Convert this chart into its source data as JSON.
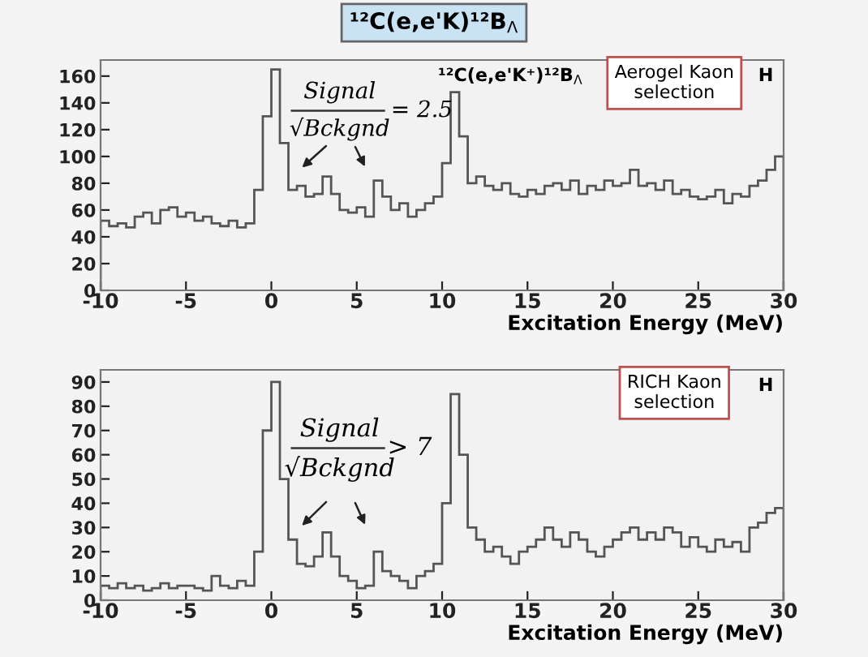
{
  "chart_data": [
    {
      "type": "histogram",
      "title": "¹²C(e,e'K)¹²B$_{Λ}$",
      "xlabel": "Excitation Energy (MeV)",
      "color": "#555555",
      "bins": [
        -10,
        -9.5,
        -9,
        -8.5,
        -8,
        -7.5,
        -7,
        -6.5,
        -6,
        -5.5,
        -5,
        -4.5,
        -4,
        -3.5,
        -3,
        -2.5,
        -2,
        -1.5,
        -1,
        -0.5,
        0,
        0.5,
        1,
        1.5,
        2,
        2.5,
        3,
        3.5,
        4,
        4.5,
        5,
        5.5,
        6,
        6.5,
        7,
        7.5,
        8,
        8.5,
        9,
        9.5,
        10,
        10.5,
        11,
        11.5,
        12,
        12.5,
        13,
        13.5,
        14,
        14.5,
        15,
        15.5,
        16,
        16.5,
        17,
        17.5,
        18,
        18.5,
        19,
        19.5,
        20,
        20.5,
        21,
        21.5,
        22,
        22.5,
        23,
        23.5,
        24,
        24.5,
        25,
        25.5,
        26,
        26.5,
        27,
        27.5,
        28,
        28.5,
        29,
        29.5,
        30
      ],
      "values": [
        52,
        48,
        50,
        47,
        55,
        58,
        50,
        60,
        62,
        55,
        58,
        52,
        55,
        50,
        48,
        52,
        47,
        50,
        75,
        130,
        165,
        110,
        75,
        78,
        70,
        72,
        85,
        72,
        60,
        58,
        62,
        55,
        82,
        70,
        60,
        65,
        55,
        60,
        65,
        70,
        95,
        148,
        115,
        80,
        85,
        78,
        75,
        80,
        72,
        70,
        75,
        72,
        78,
        80,
        75,
        82,
        72,
        78,
        75,
        82,
        78,
        80,
        90,
        78,
        80,
        75,
        82,
        72,
        75,
        70,
        68,
        70,
        75,
        65,
        72,
        70,
        78,
        82,
        90,
        100
      ],
      "xlim": [
        -10,
        30
      ],
      "xticks": [
        -10,
        -5,
        0,
        5,
        10,
        15,
        20,
        25,
        30
      ],
      "ylim": [
        0,
        172
      ],
      "yticks": [
        0,
        20,
        40,
        60,
        80,
        100,
        120,
        140,
        160
      ],
      "grid": false,
      "legend": false,
      "annotations": [
        "¹²C(e,e'K⁺)¹²B$_{Λ}$",
        "Signal",
        "√Bckgnd",
        "= 2.5",
        "Aerogel Kaon\nselection",
        "H"
      ]
    },
    {
      "type": "histogram",
      "xlabel": "Excitation Energy (MeV)",
      "color": "#555555",
      "bins": [
        -10,
        -9.5,
        -9,
        -8.5,
        -8,
        -7.5,
        -7,
        -6.5,
        -6,
        -5.5,
        -5,
        -4.5,
        -4,
        -3.5,
        -3,
        -2.5,
        -2,
        -1.5,
        -1,
        -0.5,
        0,
        0.5,
        1,
        1.5,
        2,
        2.5,
        3,
        3.5,
        4,
        4.5,
        5,
        5.5,
        6,
        6.5,
        7,
        7.5,
        8,
        8.5,
        9,
        9.5,
        10,
        10.5,
        11,
        11.5,
        12,
        12.5,
        13,
        13.5,
        14,
        14.5,
        15,
        15.5,
        16,
        16.5,
        17,
        17.5,
        18,
        18.5,
        19,
        19.5,
        20,
        20.5,
        21,
        21.5,
        22,
        22.5,
        23,
        23.5,
        24,
        24.5,
        25,
        25.5,
        26,
        26.5,
        27,
        27.5,
        28,
        28.5,
        29,
        29.5,
        30
      ],
      "values": [
        6,
        5,
        7,
        5,
        6,
        4,
        5,
        7,
        5,
        6,
        6,
        5,
        4,
        10,
        6,
        5,
        8,
        6,
        20,
        70,
        90,
        50,
        25,
        15,
        14,
        18,
        28,
        18,
        10,
        8,
        5,
        6,
        20,
        12,
        10,
        8,
        5,
        10,
        12,
        15,
        40,
        85,
        60,
        30,
        25,
        20,
        22,
        18,
        15,
        20,
        22,
        25,
        30,
        25,
        22,
        28,
        25,
        20,
        18,
        22,
        25,
        28,
        30,
        25,
        28,
        25,
        30,
        28,
        22,
        26,
        22,
        20,
        25,
        22,
        24,
        20,
        30,
        32,
        36,
        38
      ],
      "xlim": [
        -10,
        30
      ],
      "xticks": [
        -10,
        -5,
        0,
        5,
        10,
        15,
        20,
        25,
        30
      ],
      "ylim": [
        0,
        95
      ],
      "yticks": [
        0,
        10,
        20,
        30,
        40,
        50,
        60,
        70,
        80,
        90
      ],
      "grid": false,
      "legend": false,
      "annotations": [
        "Signal",
        "√Bckgnd",
        "> 7",
        "RICH Kaon\nselection",
        "H"
      ]
    }
  ]
}
